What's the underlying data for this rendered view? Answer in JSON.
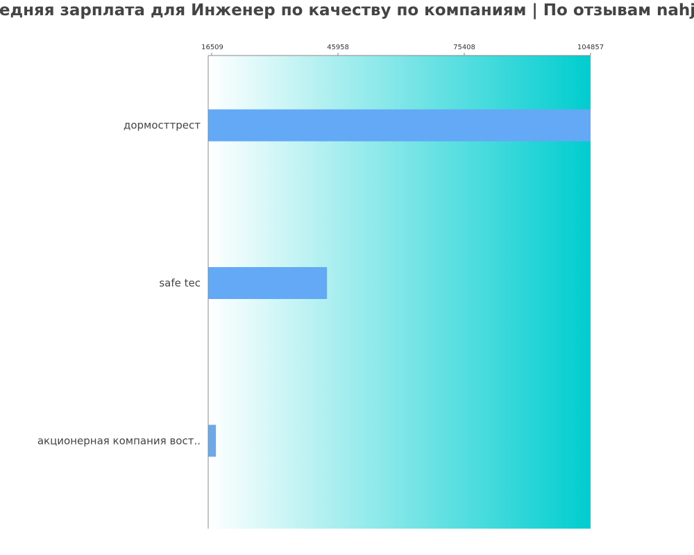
{
  "chart_data": {
    "type": "bar",
    "orientation": "horizontal",
    "title": "Средняя зарплата для Инженер по качеству по компаниям  | По отзывам nahjob",
    "categories": [
      "дормосттрест",
      "safe tec",
      "акционерная компания вост.."
    ],
    "values": [
      104857,
      43400,
      17500
    ],
    "x_ticks": [
      "16509",
      "45958",
      "75408",
      "104857"
    ],
    "xlim": [
      16509,
      104857
    ],
    "legend": "none",
    "colors": {
      "bar": "#63a9f5",
      "bar_small": "#6fa8e6",
      "gradient_start": "#ffffff",
      "gradient_end": "#00cdcf",
      "axis": "#888888",
      "text": "#444444"
    }
  }
}
